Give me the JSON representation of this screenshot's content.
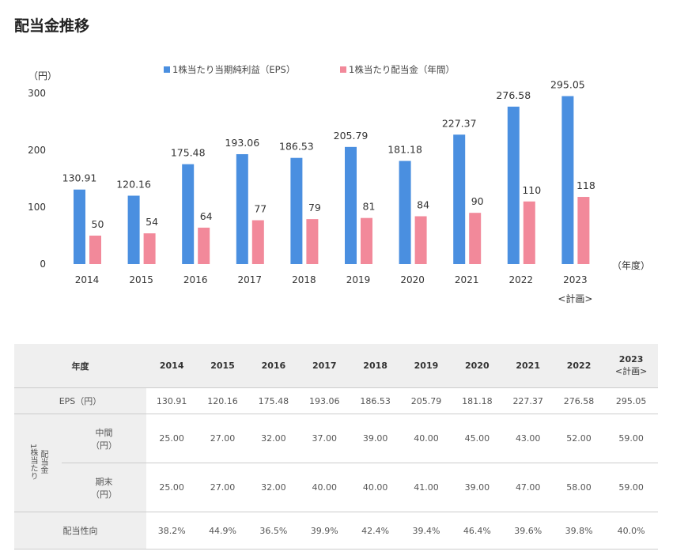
{
  "title": "配当金推移",
  "chart_data": {
    "type": "bar",
    "categories": [
      "2014",
      "2015",
      "2016",
      "2017",
      "2018",
      "2019",
      "2020",
      "2021",
      "2022",
      "2023"
    ],
    "category_sublabels": [
      "",
      "",
      "",
      "",
      "",
      "",
      "",
      "",
      "",
      "<計画>"
    ],
    "series": [
      {
        "name": "1株当たり当期純利益（EPS）",
        "color": "#4a8fe0",
        "values": [
          130.91,
          120.16,
          175.48,
          193.06,
          186.53,
          205.79,
          181.18,
          227.37,
          276.58,
          295.05
        ]
      },
      {
        "name": "1株当たり配当金（年間）",
        "color": "#f2899a",
        "values": [
          50,
          54,
          64,
          77,
          79,
          81,
          84,
          90,
          110,
          118
        ]
      }
    ],
    "yunit": "（円）",
    "xunit": "（年度）",
    "ylim": [
      0,
      300
    ],
    "yticks": [
      0,
      100,
      200,
      300
    ],
    "grid": false,
    "legend": "top"
  },
  "table": {
    "header_label": "年度",
    "years": [
      "2014",
      "2015",
      "2016",
      "2017",
      "2018",
      "2019",
      "2020",
      "2021",
      "2022",
      "2023"
    ],
    "plan_label": "<計画>",
    "eps_label": "EPS（円）",
    "eps": [
      "130.91",
      "120.16",
      "175.48",
      "193.06",
      "186.53",
      "205.79",
      "181.18",
      "227.37",
      "276.58",
      "295.05"
    ],
    "div_group_label": "配当金",
    "per_share_label": "1株当たり",
    "interim_label": "中間",
    "interim_unit": "（円）",
    "interim": [
      "25.00",
      "27.00",
      "32.00",
      "37.00",
      "39.00",
      "40.00",
      "45.00",
      "43.00",
      "52.00",
      "59.00"
    ],
    "yearend_label": "期末",
    "yearend_unit": "（円）",
    "yearend": [
      "25.00",
      "27.00",
      "32.00",
      "40.00",
      "40.00",
      "41.00",
      "39.00",
      "47.00",
      "58.00",
      "59.00"
    ],
    "payout_label": "配当性向",
    "payout": [
      "38.2%",
      "44.9%",
      "36.5%",
      "39.9%",
      "42.4%",
      "39.4%",
      "46.4%",
      "39.6%",
      "39.8%",
      "40.0%"
    ]
  }
}
